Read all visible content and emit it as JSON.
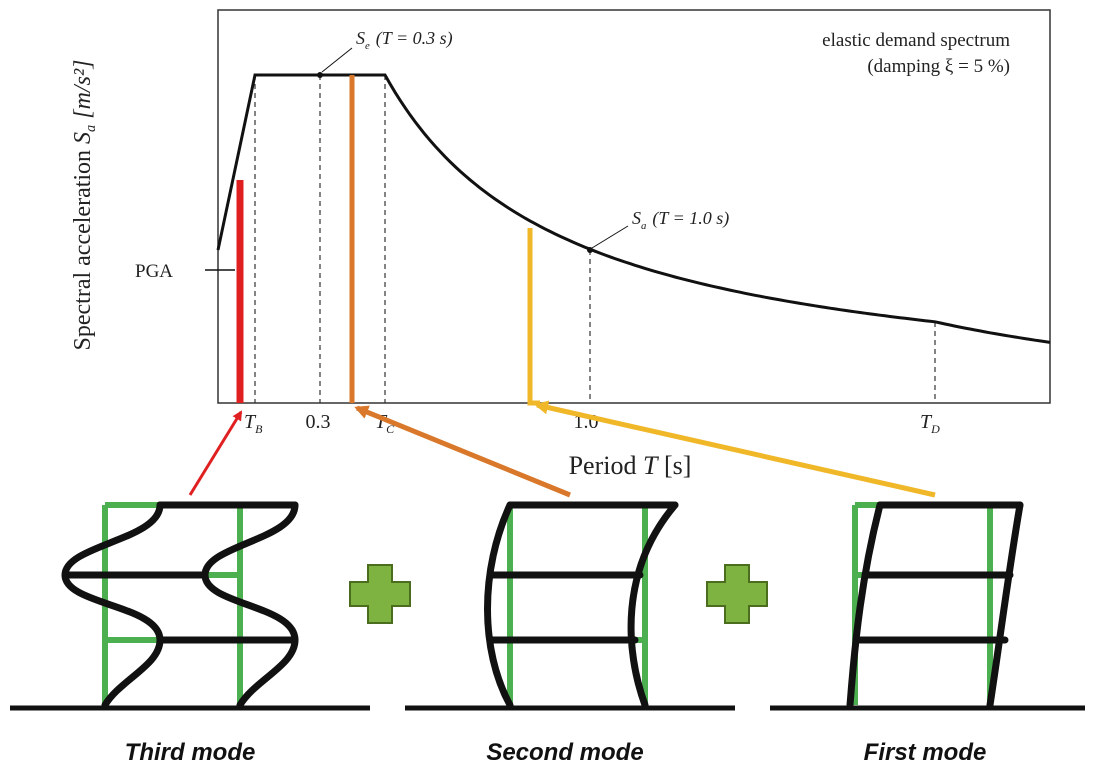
{
  "spectrum": {
    "annotation": [
      "elastic demand spectrum",
      "(damping ξ = 5 %)"
    ],
    "point_labels": [
      {
        "symbol": "S",
        "sub": "e",
        "text": "(T = 0.3 s)"
      },
      {
        "symbol": "S",
        "sub": "a",
        "text": "(T = 1.0 s)"
      }
    ],
    "pga": "PGA",
    "y_axis": {
      "text": "Spectral acceleration",
      "symbol": "S",
      "sub": "a",
      "unit": "[m/s²]"
    },
    "x_axis": {
      "text": "Period",
      "symbol": "T",
      "unit": "[s]"
    },
    "ticks": [
      {
        "symbol": "T",
        "sub": "B"
      },
      {
        "text": "0.3"
      },
      {
        "symbol": "T",
        "sub": "C"
      },
      {
        "text": "1.0"
      },
      {
        "symbol": "T",
        "sub": "D"
      }
    ]
  },
  "modes": [
    "Third mode",
    "Second mode",
    "First mode"
  ]
}
